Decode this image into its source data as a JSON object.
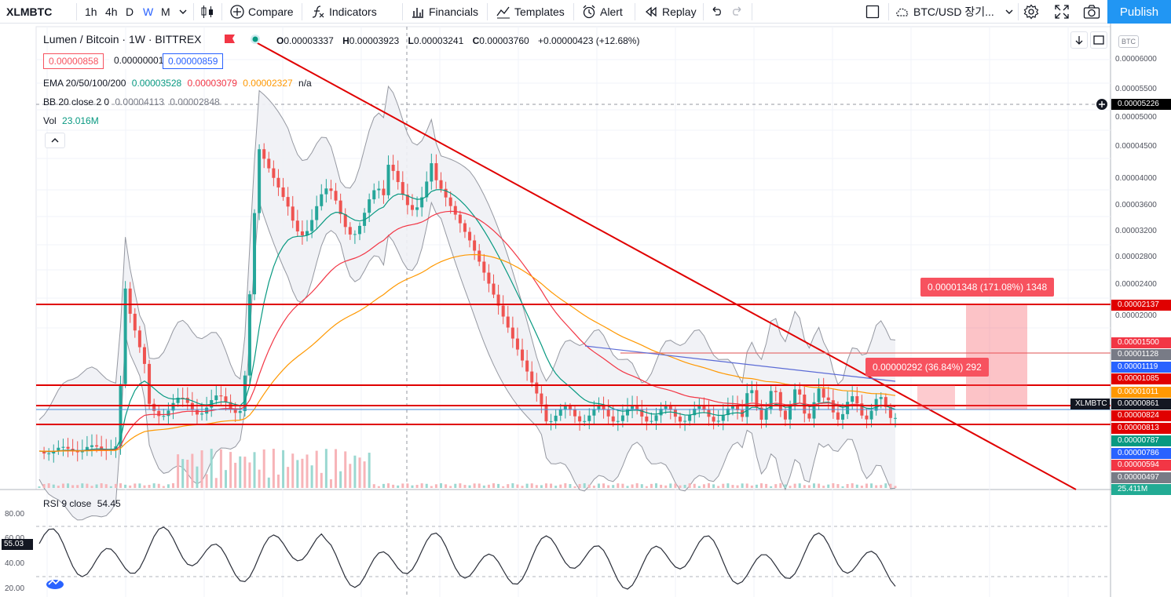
{
  "toolbar": {
    "symbol": "XLMBTC",
    "timeframes": [
      "1h",
      "4h",
      "D",
      "W",
      "M"
    ],
    "active_timeframe": "W",
    "compare_label": "Compare",
    "indicators_label": "Indicators",
    "financials_label": "Financials",
    "templates_label": "Templates",
    "alert_label": "Alert",
    "replay_label": "Replay",
    "layout_label": "BTC/USD 장기...",
    "publish_label": "Publish"
  },
  "legend": {
    "title": "Lumen / Bitcoin · 1W · BITTREX",
    "ohlc": {
      "o_label": "O",
      "o": "0.00003337",
      "h_label": "H",
      "h": "0.00003923",
      "l_label": "L",
      "l": "0.00003241",
      "c_label": "C",
      "c": "0.00003760",
      "change": "+0.00000423 (+12.68%)"
    },
    "sell_price": "0.00000858",
    "spread": "0.00000001",
    "buy_price": "0.00000859",
    "ema_label": "EMA 20/50/100/200",
    "ema_values": [
      "0.00003528",
      "0.00003079",
      "0.00002327",
      "n/a"
    ],
    "bb_label": "BB 20 close 2 0",
    "bb_values": [
      "0.00004113",
      "0.00002848"
    ],
    "vol_label": "Vol",
    "vol_value": "23.016M",
    "rsi_label": "RSI 9 close",
    "rsi_value": "54.45"
  },
  "price_axis": {
    "unit": "BTC",
    "ticks": [
      "0.00006000",
      "0.00005500",
      "0.00005000",
      "0.00004500",
      "0.00004000",
      "0.00003600",
      "0.00003200",
      "0.00002800",
      "0.00002400",
      "0.00002000"
    ],
    "labels": [
      {
        "text": "0.00005226",
        "color": "#000000"
      },
      {
        "text": "0.00002137",
        "color": "#e00000"
      },
      {
        "text": "0.00001500",
        "color": "#f23645"
      },
      {
        "text": "0.00001128",
        "color": "#787b86"
      },
      {
        "text": "0.00001119",
        "color": "#2962ff"
      },
      {
        "text": "0.00001085",
        "color": "#e00000"
      },
      {
        "text": "0.00001011",
        "color": "#ff9800"
      },
      {
        "text": "0.00000861",
        "color": "#131722"
      },
      {
        "text": "0.00000824",
        "color": "#e00000"
      },
      {
        "text": "0.00000813",
        "color": "#e00000"
      },
      {
        "text": "0.00000787",
        "color": "#089981"
      },
      {
        "text": "0.00000786",
        "color": "#2962ff"
      },
      {
        "text": "0.00000594",
        "color": "#f23645"
      },
      {
        "text": "0.00000497",
        "color": "#787b86"
      },
      {
        "text": "25.411M",
        "color": "#22ab94"
      }
    ],
    "symbol_tag": "XLMBTC"
  },
  "rsi_axis": {
    "ticks": [
      "80.00",
      "60.00",
      "40.00",
      "20.00"
    ],
    "current": "55.03"
  },
  "annotations": [
    {
      "text": "0.00001348 (171.08%) 1348"
    },
    {
      "text": "0.00000292 (36.84%) 292"
    }
  ],
  "colors": {
    "accent": "#2196f3",
    "trendline": "#e00000",
    "ema20": "#089981",
    "ema50": "#f23645",
    "ema100": "#ff9800",
    "bb": "#9598a1",
    "up": "#26a69a",
    "down": "#ef5350"
  }
}
